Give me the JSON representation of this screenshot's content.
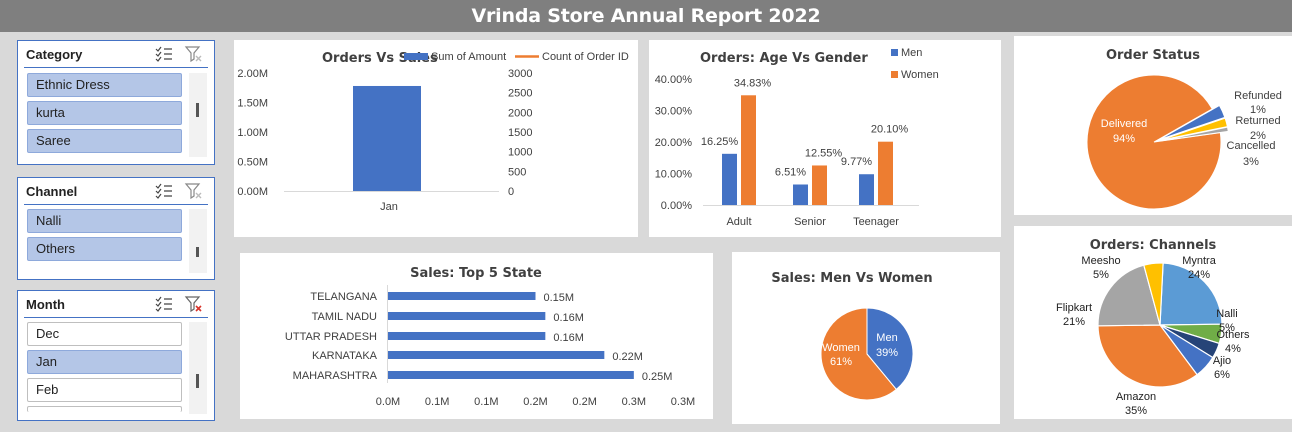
{
  "report_title": "Vrinda Store Annual Report 2022",
  "slicers": {
    "category": {
      "title": "Category",
      "items": [
        "Ethnic Dress",
        "kurta",
        "Saree"
      ]
    },
    "channel": {
      "title": "Channel",
      "items": [
        "Nalli",
        "Others"
      ]
    },
    "month": {
      "title": "Month",
      "items": [
        "Dec",
        "Jan",
        "Feb"
      ],
      "selected": "Jan"
    }
  },
  "colors": {
    "blue": "#4472c4",
    "orange": "#ed7d31",
    "gray": "#a5a5a5",
    "yellow": "#ffc000",
    "lightblue": "#5b9bd5",
    "green": "#70ad47",
    "navy": "#264478"
  },
  "chart_data": [
    {
      "id": "orders_vs_sales",
      "type": "bar",
      "title": "Orders Vs Sales",
      "categories": [
        "Jan"
      ],
      "series": [
        {
          "name": "Sum of Amount",
          "values": [
            1780000
          ],
          "axis": "left"
        },
        {
          "name": "Count of Order ID",
          "values": [
            null
          ],
          "axis": "right"
        }
      ],
      "left_ticks": [
        "2.00M",
        "1.50M",
        "1.00M",
        "0.50M",
        "0.00M"
      ],
      "right_ticks": [
        "3000",
        "2500",
        "2000",
        "1500",
        "1000",
        "500",
        "0"
      ],
      "ylim": [
        0,
        2000000
      ],
      "legend": "top"
    },
    {
      "id": "age_vs_gender",
      "type": "bar",
      "title": "Orders: Age Vs Gender",
      "categories": [
        "Adult",
        "Senior",
        "Teenager"
      ],
      "series": [
        {
          "name": "Men",
          "values": [
            16.25,
            6.51,
            9.77
          ],
          "labels": [
            "16.25%",
            "6.51%",
            "9.77%"
          ]
        },
        {
          "name": "Women",
          "values": [
            34.83,
            12.55,
            20.1
          ],
          "labels": [
            "34.83%",
            "12.55%",
            "20.10%"
          ]
        }
      ],
      "y_ticks": [
        "40.00%",
        "30.00%",
        "20.00%",
        "10.00%",
        "0.00%"
      ],
      "ylim": [
        0,
        40
      ],
      "legend": "top-right"
    },
    {
      "id": "order_status",
      "type": "pie",
      "title": "Order Status",
      "slices": [
        {
          "label": "Delivered",
          "value": 94,
          "text": "94%"
        },
        {
          "label": "Cancelled",
          "value": 3,
          "text": "3%"
        },
        {
          "label": "Returned",
          "value": 2,
          "text": "2%"
        },
        {
          "label": "Refunded",
          "value": 1,
          "text": "1%"
        }
      ]
    },
    {
      "id": "top5_state",
      "type": "bar",
      "orientation": "horizontal",
      "title": "Sales: Top 5 State",
      "categories": [
        "TELANGANA",
        "TAMIL NADU",
        "UTTAR PRADESH",
        "KARNATAKA",
        "MAHARASHTRA"
      ],
      "values": [
        0.15,
        0.16,
        0.16,
        0.22,
        0.25
      ],
      "labels": [
        "0.15M",
        "0.16M",
        "0.16M",
        "0.22M",
        "0.25M"
      ],
      "x_ticks": [
        "0.0M",
        "0.1M",
        "0.1M",
        "0.2M",
        "0.2M",
        "0.3M",
        "0.3M"
      ],
      "xlim": [
        0,
        0.3
      ]
    },
    {
      "id": "men_vs_women",
      "type": "pie",
      "title": "Sales: Men Vs Women",
      "slices": [
        {
          "label": "Men",
          "value": 39,
          "text": "39%"
        },
        {
          "label": "Women",
          "value": 61,
          "text": "61%"
        }
      ]
    },
    {
      "id": "channels",
      "type": "pie",
      "title": "Orders: Channels",
      "slices": [
        {
          "label": "Myntra",
          "value": 24,
          "text": "24%"
        },
        {
          "label": "Nalli",
          "value": 5,
          "text": "5%"
        },
        {
          "label": "Others",
          "value": 4,
          "text": "4%"
        },
        {
          "label": "Ajio",
          "value": 6,
          "text": "6%"
        },
        {
          "label": "Amazon",
          "value": 35,
          "text": "35%"
        },
        {
          "label": "Flipkart",
          "value": 21,
          "text": "21%"
        },
        {
          "label": "Meesho",
          "value": 5,
          "text": "5%"
        }
      ]
    }
  ]
}
